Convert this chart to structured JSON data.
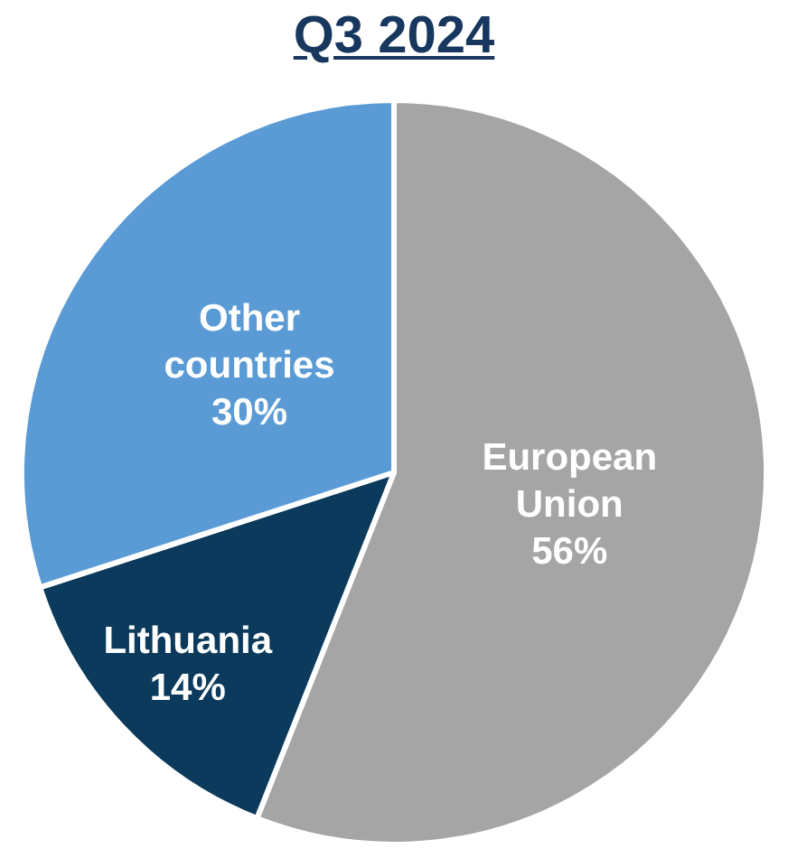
{
  "chart_data": {
    "type": "pie",
    "title": "Q3 2024",
    "categories": [
      "European Union",
      "Lithuania",
      "Other countries"
    ],
    "values": [
      56,
      14,
      30
    ],
    "value_labels": [
      "56%",
      "14%",
      "30%"
    ],
    "colors": [
      "#a5a5a5",
      "#0b3a5c",
      "#5b9bd5"
    ],
    "legend": false
  }
}
